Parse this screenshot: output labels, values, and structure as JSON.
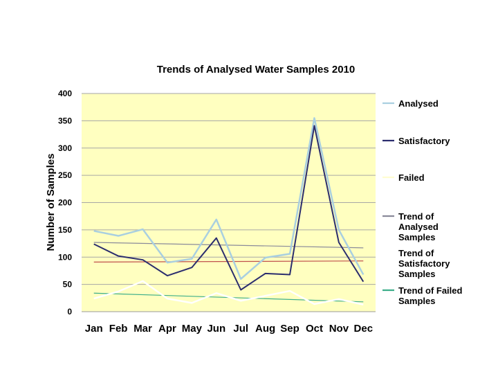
{
  "chart_data": {
    "type": "line",
    "title": "Trends of Analysed Water Samples 2010",
    "xlabel": "",
    "ylabel": "Number of Samples",
    "ylim": [
      0,
      400
    ],
    "yticks": [
      0,
      50,
      100,
      150,
      200,
      250,
      300,
      350,
      400
    ],
    "grid": true,
    "legend_position": "right",
    "categories": [
      "Jan",
      "Feb",
      "Mar",
      "Apr",
      "May",
      "Jun",
      "Jul",
      "Aug",
      "Sep",
      "Oct",
      "Nov",
      "Dec"
    ],
    "series": [
      {
        "name": "Analysed",
        "color": "#a9cfe0",
        "values": [
          148,
          139,
          151,
          90,
          97,
          169,
          60,
          99,
          106,
          355,
          150,
          68
        ]
      },
      {
        "name": "Satisfactory",
        "color": "#2b2d6e",
        "values": [
          124,
          102,
          95,
          66,
          81,
          135,
          40,
          70,
          68,
          341,
          127,
          55
        ]
      },
      {
        "name": "Failed",
        "color": "#ffffff",
        "values": [
          24,
          37,
          56,
          24,
          16,
          34,
          20,
          29,
          38,
          14,
          23,
          13
        ]
      }
    ],
    "trends": [
      {
        "name": "Trend of Analysed Samples",
        "color": "#8a8a9a",
        "start": 127,
        "end": 117
      },
      {
        "name": "Trend of Satisfactory Samples",
        "color": "#c0504d",
        "start": 91,
        "end": 93
      },
      {
        "name": "Trend of Failed Samples",
        "color": "#3cae8a",
        "start": 34,
        "end": 18
      }
    ],
    "legend": [
      {
        "label_lines": [
          "Analysed"
        ],
        "color": "#a9cfe0"
      },
      {
        "label_lines": [
          "Satisfactory"
        ],
        "color": "#2b2d6e"
      },
      {
        "label_lines": [
          "Failed"
        ],
        "color": "#fffdd0"
      },
      {
        "label_lines": [
          "Trend of",
          "Analysed",
          "Samples"
        ],
        "color": "#8a8a9a"
      },
      {
        "label_lines": [
          "Trend of",
          "Satisfactory",
          "Samples"
        ],
        "color": "#ffffff"
      },
      {
        "label_lines": [
          "Trend of Failed",
          "Samples"
        ],
        "color": "#3cae8a"
      }
    ],
    "plot_background": "#ffffc0"
  }
}
